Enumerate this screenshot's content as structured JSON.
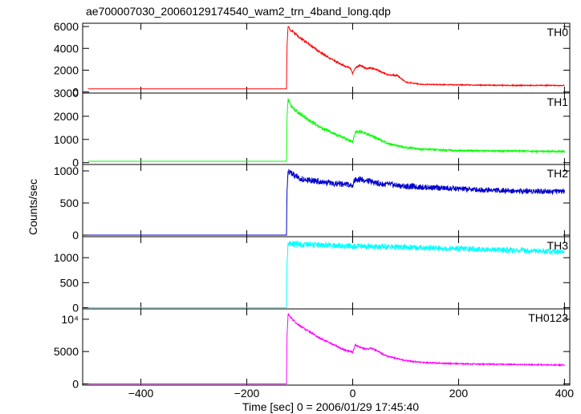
{
  "chart_data": {
    "type": "line",
    "title": "ae700007030_20060129174540_wam2_trn_4band_long.qdp",
    "xlabel": "Time [sec] 0 = 2006/01/29 17:45:40",
    "ylabel": "Counts/sec",
    "xlim": [
      -510,
      410
    ],
    "xticks": [
      -400,
      -200,
      0,
      200,
      400
    ],
    "xtick_labels": [
      "−400",
      "−200",
      "0",
      "200",
      "400"
    ],
    "grid": false,
    "legend": "none",
    "panels": [
      {
        "name": "TH0",
        "color": "#ff0000",
        "ylim": [
          -100,
          6300
        ],
        "yticks": [
          0,
          2000,
          4000,
          6000
        ],
        "ytick_labels": [
          "0",
          "2000",
          "4000",
          "6000"
        ],
        "x": [
          -500,
          -400,
          -300,
          -200,
          -125,
          -124,
          -122,
          -118,
          -110,
          -100,
          -80,
          -60,
          -40,
          -20,
          -5,
          0,
          5,
          15,
          25,
          35,
          45,
          55,
          65,
          75,
          85,
          100,
          130,
          200,
          300,
          400
        ],
        "y": [
          280,
          280,
          280,
          280,
          280,
          4200,
          6100,
          5700,
          5400,
          5000,
          4300,
          3600,
          3000,
          2500,
          2200,
          1700,
          2200,
          2450,
          2150,
          2200,
          2050,
          1800,
          1600,
          1550,
          1500,
          900,
          700,
          650,
          600,
          600
        ]
      },
      {
        "name": "TH1",
        "color": "#00ff00",
        "ylim": [
          -80,
          3000
        ],
        "yticks": [
          0,
          1000,
          2000,
          3000
        ],
        "ytick_labels": [
          "0",
          "1000",
          "2000",
          "3000"
        ],
        "x": [
          -500,
          -400,
          -300,
          -200,
          -125,
          -124,
          -122,
          -118,
          -110,
          -100,
          -80,
          -60,
          -40,
          -20,
          -5,
          0,
          5,
          15,
          25,
          35,
          45,
          55,
          65,
          80,
          100,
          130,
          200,
          300,
          400
        ],
        "y": [
          60,
          60,
          60,
          60,
          60,
          1900,
          2800,
          2500,
          2300,
          2100,
          1800,
          1500,
          1300,
          1100,
          950,
          900,
          1300,
          1350,
          1250,
          1150,
          1050,
          950,
          850,
          750,
          650,
          580,
          520,
          500,
          480
        ]
      },
      {
        "name": "TH2",
        "color": "#0000cc",
        "ylim": [
          -25,
          1100
        ],
        "yticks": [
          0,
          500,
          1000
        ],
        "ytick_labels": [
          "0",
          "500",
          "1000"
        ],
        "x": [
          -500,
          -400,
          -300,
          -200,
          -125,
          -124,
          -122,
          -115,
          -100,
          -60,
          -20,
          -5,
          0,
          5,
          20,
          50,
          100,
          200,
          300,
          400
        ],
        "y": [
          0,
          0,
          0,
          0,
          0,
          700,
          1000,
          950,
          880,
          830,
          790,
          780,
          760,
          880,
          860,
          800,
          760,
          720,
          690,
          680
        ]
      },
      {
        "name": "TH3",
        "color": "#00ffff",
        "ylim": [
          -25,
          1420
        ],
        "yticks": [
          0,
          500,
          1000
        ],
        "ytick_labels": [
          "0",
          "500",
          "1000"
        ],
        "x": [
          -500,
          -400,
          -300,
          -200,
          -125,
          -124,
          -122,
          -110,
          -60,
          0,
          60,
          120,
          200,
          300,
          400
        ],
        "y": [
          0,
          0,
          0,
          0,
          0,
          900,
          1280,
          1270,
          1250,
          1230,
          1220,
          1200,
          1180,
          1150,
          1120
        ]
      },
      {
        "name": "TH0123",
        "color": "#ff00ff",
        "ylim": [
          -200,
          11600
        ],
        "yticks": [
          0,
          5000,
          10000
        ],
        "ytick_labels": [
          "0",
          "5000",
          "10⁴"
        ],
        "x": [
          -500,
          -400,
          -300,
          -200,
          -125,
          -124,
          -122,
          -118,
          -110,
          -100,
          -80,
          -60,
          -40,
          -20,
          -5,
          0,
          5,
          15,
          25,
          35,
          45,
          55,
          65,
          80,
          100,
          130,
          200,
          300,
          400
        ],
        "y": [
          0,
          0,
          0,
          0,
          0,
          7500,
          10800,
          10300,
          9700,
          9000,
          8000,
          7000,
          6200,
          5400,
          5000,
          4900,
          6000,
          5600,
          5400,
          5500,
          5200,
          4700,
          4300,
          4000,
          3600,
          3300,
          3100,
          3000,
          2900
        ]
      }
    ]
  }
}
